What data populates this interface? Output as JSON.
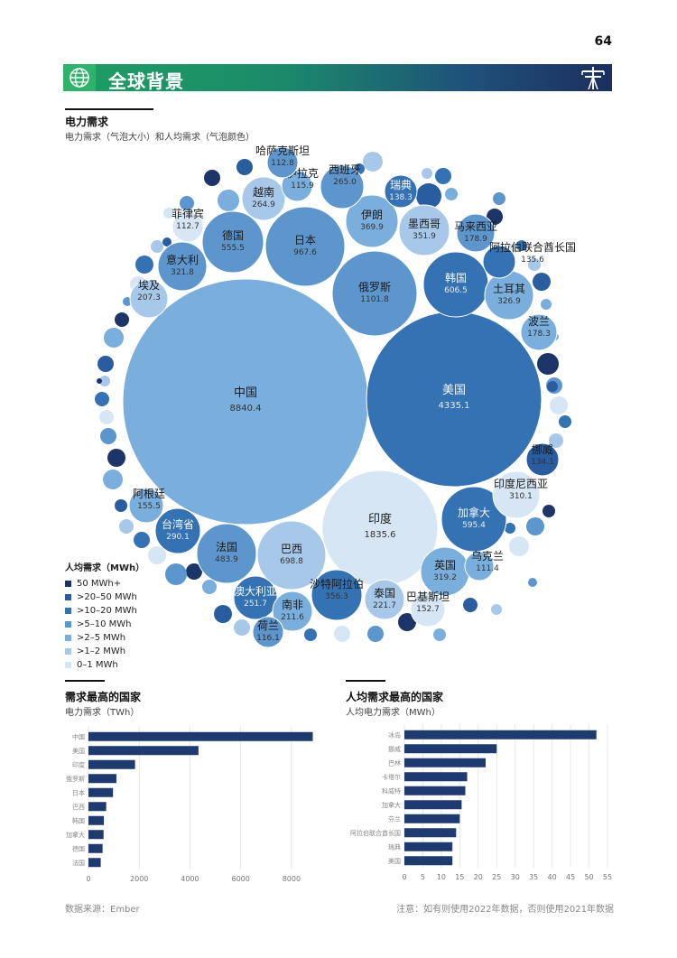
{
  "page": {
    "number": "64"
  },
  "header": {
    "title": "全球背景"
  },
  "main_chart": {
    "title": "电力需求",
    "subtitle": "电力需求（气泡大小）和人均需求（气泡颜色）"
  },
  "legend": {
    "title": "人均需求（MWh）",
    "items": [
      {
        "label": "50 MWh+",
        "color": "#1c3468"
      },
      {
        "label": ">20–50 MWh",
        "color": "#2a5d9f"
      },
      {
        "label": ">10–20 MWh",
        "color": "#3572b3"
      },
      {
        "label": ">5–10 MWh",
        "color": "#5d96cd"
      },
      {
        "label": ">2–5 MWh",
        "color": "#7aaedc"
      },
      {
        "label": ">1–2 MWh",
        "color": "#a7c8e8"
      },
      {
        "label": "0–1 MWh",
        "color": "#d6e6f4"
      }
    ]
  },
  "chart_data": [
    {
      "type": "bubble",
      "title": "电力需求",
      "subtitle": "电力需求（气泡大小）和人均需求（气泡颜色）",
      "bubbles": [
        {
          "name": "中国",
          "value": "8840.4",
          "cat": 4
        },
        {
          "name": "美国",
          "value": "4335.1",
          "cat": 2
        },
        {
          "name": "印度",
          "value": "1835.6",
          "cat": 6
        },
        {
          "name": "俄罗斯",
          "value": "1101.8",
          "cat": 3
        },
        {
          "name": "日本",
          "value": "967.6",
          "cat": 3
        },
        {
          "name": "巴西",
          "value": "698.8",
          "cat": 5
        },
        {
          "name": "韩国",
          "value": "606.5",
          "cat": 2
        },
        {
          "name": "加拿大",
          "value": "595.4",
          "cat": 2
        },
        {
          "name": "德国",
          "value": "555.5",
          "cat": 3
        },
        {
          "name": "法国",
          "value": "483.9",
          "cat": 3
        },
        {
          "name": "伊朗",
          "value": "369.9",
          "cat": 4
        },
        {
          "name": "沙特阿拉伯",
          "value": "356.3",
          "cat": 2
        },
        {
          "name": "墨西哥",
          "value": "351.9",
          "cat": 5
        },
        {
          "name": "土耳其",
          "value": "326.9",
          "cat": 4
        },
        {
          "name": "意大利",
          "value": "321.8",
          "cat": 3
        },
        {
          "name": "英国",
          "value": "319.2",
          "cat": 4
        },
        {
          "name": "印度尼西亚",
          "value": "310.1",
          "cat": 6
        },
        {
          "name": "台湾省",
          "value": "290.1",
          "cat": 2
        },
        {
          "name": "西班牙",
          "value": "265.0",
          "cat": 3
        },
        {
          "name": "越南",
          "value": "264.9",
          "cat": 5
        },
        {
          "name": "澳大利亚",
          "value": "251.7",
          "cat": 2
        },
        {
          "name": "泰国",
          "value": "221.7",
          "cat": 5
        },
        {
          "name": "南非",
          "value": "211.6",
          "cat": 4
        },
        {
          "name": "埃及",
          "value": "207.3",
          "cat": 5
        },
        {
          "name": "马来西亚",
          "value": "178.9",
          "cat": 3
        },
        {
          "name": "波兰",
          "value": "178.3",
          "cat": 4
        },
        {
          "name": "阿根廷",
          "value": "155.5",
          "cat": 4
        },
        {
          "name": "巴基斯坦",
          "value": "152.7",
          "cat": 6
        },
        {
          "name": "瑞典",
          "value": "138.3",
          "cat": 2
        },
        {
          "name": "阿拉伯联合酋长国",
          "value": "135.6",
          "cat": 2
        },
        {
          "name": "挪威",
          "value": "134.1",
          "cat": 1
        },
        {
          "name": "伊拉克",
          "value": "115.9",
          "cat": 4
        },
        {
          "name": "荷兰",
          "value": "116.1",
          "cat": 3
        },
        {
          "name": "哈萨克斯坦",
          "value": "112.8",
          "cat": 3
        },
        {
          "name": "菲律宾",
          "value": "112.7",
          "cat": 6
        },
        {
          "name": "乌克兰",
          "value": "111.4",
          "cat": 4
        }
      ]
    },
    {
      "type": "bar",
      "title": "需求最高的国家",
      "subtitle": "电力需求（TWh）",
      "categories": [
        "中国",
        "美国",
        "印度",
        "俄罗斯",
        "日本",
        "巴西",
        "韩国",
        "加拿大",
        "德国",
        "法国"
      ],
      "values": [
        8840.4,
        4335.1,
        1835.6,
        1101.8,
        967.6,
        698.8,
        606.5,
        595.4,
        555.5,
        483.9
      ],
      "xlim": [
        0,
        9000
      ],
      "xticks": [
        "0",
        "2000",
        "4000",
        "6000",
        "8000"
      ],
      "color": "#1f3a6e"
    },
    {
      "type": "bar",
      "title": "人均需求最高的国家",
      "subtitle": "人均电力需求（MWh）",
      "categories": [
        "冰岛",
        "挪威",
        "巴林",
        "卡塔尔",
        "科威特",
        "加拿大",
        "芬兰",
        "阿拉伯联合酋长国",
        "瑞典",
        "美国"
      ],
      "values": [
        52,
        25,
        22,
        17,
        16.5,
        15.5,
        15,
        14,
        13,
        13
      ],
      "xlim": [
        0,
        55
      ],
      "xticks": [
        "0",
        "5",
        "10",
        "15",
        "20",
        "25",
        "30",
        "35",
        "40",
        "45",
        "50",
        "55"
      ],
      "color": "#1f3a6e"
    }
  ],
  "footer": {
    "source": "数据来源：Ember",
    "note": "注意：如有则使用2022年数据，否则使用2021年数据"
  }
}
